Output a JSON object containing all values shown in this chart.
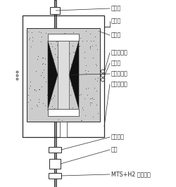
{
  "background_color": "#ffffff",
  "line_color": "#2a2a2a",
  "stipple_bg": "#cccccc",
  "dark_fill": "#111111",
  "white_fill": "#ffffff",
  "light_gray": "#dddddd",
  "labels": {
    "chu_qi_guan": "出气管",
    "re_dian_ou": "热电偶",
    "ge_re_ceng": "隔热层",
    "shi_mo_gan_ying_qi": "石墨感应器",
    "gan_ying_quan": "感应圈",
    "mo_zi_he_ji_di": "模子和基底",
    "shi_ying_fan_ying_shi": "石英反应室",
    "dan_qi_ru_kou": "氮气入口",
    "tui_gan": "推杆",
    "mts_h2": "MTS+H2 的引入管"
  },
  "figsize": [
    2.5,
    2.66
  ],
  "dpi": 100
}
